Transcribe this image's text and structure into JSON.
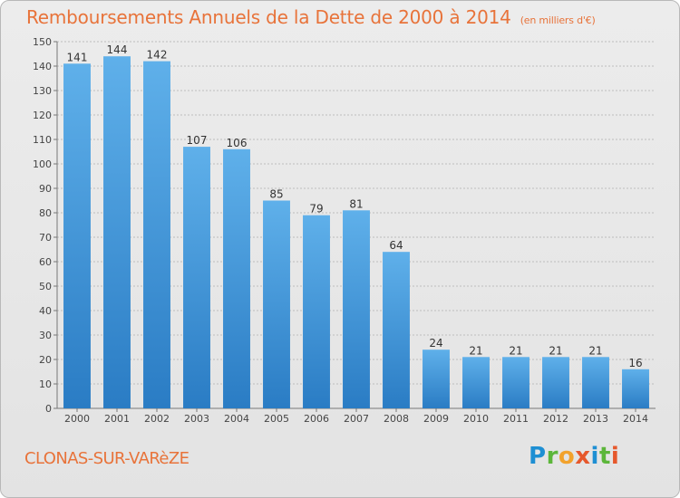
{
  "title": "Remboursements Annuels de la Dette de 2000 à 2014",
  "subtitle": "(en milliers d'€)",
  "place": "CLONAS-SUR-VARèZE",
  "brand": {
    "text": "Proxiti"
  },
  "colors": {
    "bar": "#3f93d6",
    "title": "#e8733a",
    "grid": "#bdbdbd"
  },
  "chart_data": {
    "type": "bar",
    "categories": [
      "2000",
      "2001",
      "2002",
      "2003",
      "2004",
      "2005",
      "2006",
      "2007",
      "2008",
      "2009",
      "2010",
      "2011",
      "2012",
      "2013",
      "2014"
    ],
    "values": [
      141,
      144,
      142,
      107,
      106,
      85,
      79,
      81,
      64,
      24,
      21,
      21,
      21,
      21,
      16
    ],
    "ylim": [
      0,
      150
    ],
    "yticks": [
      0,
      10,
      20,
      30,
      40,
      50,
      60,
      70,
      80,
      90,
      100,
      110,
      120,
      130,
      140,
      150
    ],
    "grid": true,
    "data_labels": true
  }
}
